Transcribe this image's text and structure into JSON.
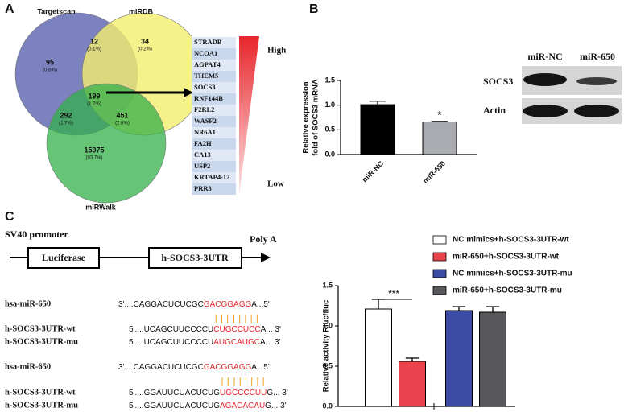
{
  "panels": {
    "a": "A",
    "b": "B",
    "c": "C"
  },
  "venn": {
    "sets": [
      {
        "name": "Targetscan",
        "color": "#5b62b0"
      },
      {
        "name": "miRDB",
        "color": "#f2ee6e"
      },
      {
        "name": "miRWalk",
        "color": "#33b04a"
      }
    ],
    "regions": [
      {
        "count": "95",
        "percent": "(0.6%)"
      },
      {
        "count": "12",
        "percent": "(0.1%)"
      },
      {
        "count": "34",
        "percent": "(0.2%)"
      },
      {
        "count": "199",
        "percent": "(1.2%)"
      },
      {
        "count": "292",
        "percent": "(1.7%)"
      },
      {
        "count": "451",
        "percent": "(2.6%)"
      },
      {
        "count": "15975",
        "percent": "(93.7%)"
      }
    ]
  },
  "gene_list": {
    "genes": [
      "STRADB",
      "NCOA1",
      "AGPAT4",
      "THEM5",
      "SOCS3",
      "RNF144B",
      "F2RL2",
      "WASF2",
      "NR6A1",
      "FA2H",
      "CA13",
      "USP2",
      "KRTAP4-12",
      "PRR3"
    ],
    "high": "High",
    "low": "Low"
  },
  "blot": {
    "lanes": [
      "miR-NC",
      "miR-650"
    ],
    "proteins": [
      "SOCS3",
      "Actin"
    ]
  },
  "construct": {
    "promoter": "SV40 promoter",
    "genes": [
      "Luciferase",
      "h-SOCS3-3UTR"
    ],
    "tail": "Poly A"
  },
  "sequences": [
    {
      "name": "hsa-miR-650",
      "prefix": "3'....CAGGACUCUCGC",
      "match": "GACGGAGG",
      "suffix": "A...5'"
    },
    {
      "name": "h-SOCS3-3UTR-wt",
      "prefix": "5'....UCAGCUUCCCCU",
      "match": "CUGCCUCC",
      "suffix": "A... 3'"
    },
    {
      "name": "h-SOCS3-3UTR-mu",
      "prefix": "5'....UCAGCUUCCCCU",
      "match": "AUGCAUGC",
      "suffix": "A... 3'"
    },
    {
      "name": "hsa-miR-650",
      "prefix": "3'....CAGGACUCUCGC",
      "match": "GACGGAGG",
      "suffix": "A...5'"
    },
    {
      "name": "h-SOCS3-3UTR-wt",
      "prefix": "5'....GGAUUCUACUCUG",
      "match": "UGCCCCUU",
      "suffix": "G... 3'"
    },
    {
      "name": "h-SOCS3-3UTR-mu",
      "prefix": "5'....GGAUUCUACUCUG",
      "match": "AGACACAU",
      "suffix": "G... 3'"
    }
  ],
  "chart_data": [
    {
      "type": "bar",
      "ylabel": [
        "Relative expression",
        "fold of SOCS3 mRNA"
      ],
      "categories": [
        "miR-NC",
        "miR-650"
      ],
      "values": [
        1.01,
        0.66
      ],
      "errors": [
        0.07,
        0.01
      ],
      "colors": [
        "#000000",
        "#a9abb0"
      ],
      "annotations": [
        "",
        "*"
      ],
      "ylim": [
        0,
        1.5
      ],
      "yticks": [
        {
          "value": 0,
          "label": "0.0"
        },
        {
          "value": 0.5,
          "label": "0.5"
        },
        {
          "value": 1,
          "label": "1.0"
        },
        {
          "value": 1.5,
          "label": "1.5"
        }
      ]
    },
    {
      "type": "bar",
      "ylabel": [
        "Relative activity Rluc/fluc"
      ],
      "series": [
        {
          "name": "NC mimics+h-SOCS3-3UTR-wt",
          "color": "#ffffff",
          "values": [
            1.21
          ],
          "errors": [
            0.12
          ]
        },
        {
          "name": "miR-650+h-SOCS3-3UTR-wt",
          "color": "#e8434c",
          "values": [
            0.56
          ],
          "errors": [
            0.04
          ]
        },
        {
          "name": "NC mimics+h-SOCS3-3UTR-mu",
          "color": "#3c4ba3",
          "values": [
            1.19
          ],
          "errors": [
            0.05
          ]
        },
        {
          "name": "miR-650+h-SOCS3-3UTR-mu",
          "color": "#58585c",
          "values": [
            1.17
          ],
          "errors": [
            0.07
          ]
        }
      ],
      "significance": "***",
      "ylim": [
        0,
        1.5
      ],
      "yticks": [
        {
          "value": 0,
          "label": "0.0"
        },
        {
          "value": 0.5,
          "label": "0.5"
        },
        {
          "value": 1,
          "label": "1.0"
        },
        {
          "value": 1.5,
          "label": "1.5"
        }
      ]
    }
  ]
}
